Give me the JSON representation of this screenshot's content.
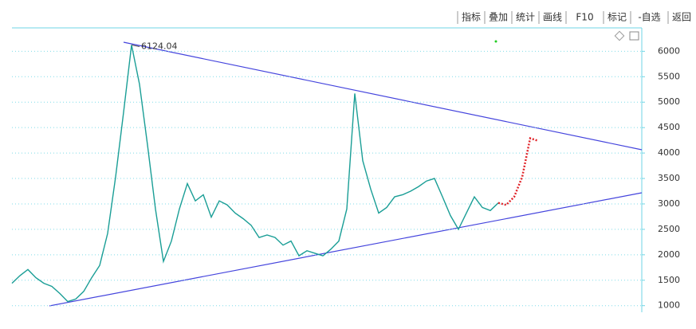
{
  "chart_data": {
    "type": "line",
    "toolbar": [
      "指标",
      "叠加",
      "统计",
      "画线",
      "F10",
      "标记",
      "-自选",
      "返回"
    ],
    "active_tool": 3,
    "annotation": "6124.04",
    "annotation_index": 15,
    "series": [
      {
        "color": "#1a9e96",
        "values": [
          1440,
          1590,
          1710,
          1550,
          1440,
          1380,
          1240,
          1080,
          1130,
          1280,
          1550,
          1790,
          2420,
          3530,
          4800,
          6124,
          5350,
          4160,
          2900,
          1870,
          2270,
          2900,
          3400,
          3060,
          3180,
          2740,
          3060,
          2980,
          2820,
          2710,
          2580,
          2340,
          2390,
          2340,
          2190,
          2270,
          1980,
          2080,
          2030,
          1980,
          2110,
          2270,
          2900,
          5170,
          3850,
          3290,
          2820,
          2930,
          3140,
          3180,
          3250,
          3340,
          3450,
          3500,
          3140,
          2770,
          2500,
          2820,
          3140,
          2930,
          2870,
          3020,
          null,
          null,
          null,
          null,
          null
        ]
      },
      {
        "color": "#e0242a",
        "values": [
          null,
          null,
          null,
          null,
          null,
          null,
          null,
          null,
          null,
          null,
          null,
          null,
          null,
          null,
          null,
          null,
          null,
          null,
          null,
          null,
          null,
          null,
          null,
          null,
          null,
          null,
          null,
          null,
          null,
          null,
          null,
          null,
          null,
          null,
          null,
          null,
          null,
          null,
          null,
          null,
          null,
          null,
          null,
          null,
          null,
          null,
          null,
          null,
          null,
          null,
          null,
          null,
          null,
          null,
          null,
          null,
          null,
          null,
          null,
          null,
          null,
          3020,
          2980,
          3140,
          3530,
          4290,
          4240
        ]
      }
    ],
    "ylim": [
      870,
      6460
    ],
    "yticks": [
      1000,
      1500,
      2000,
      2500,
      3000,
      3500,
      4000,
      4500,
      5000,
      5500,
      6000
    ],
    "grid": true
  }
}
